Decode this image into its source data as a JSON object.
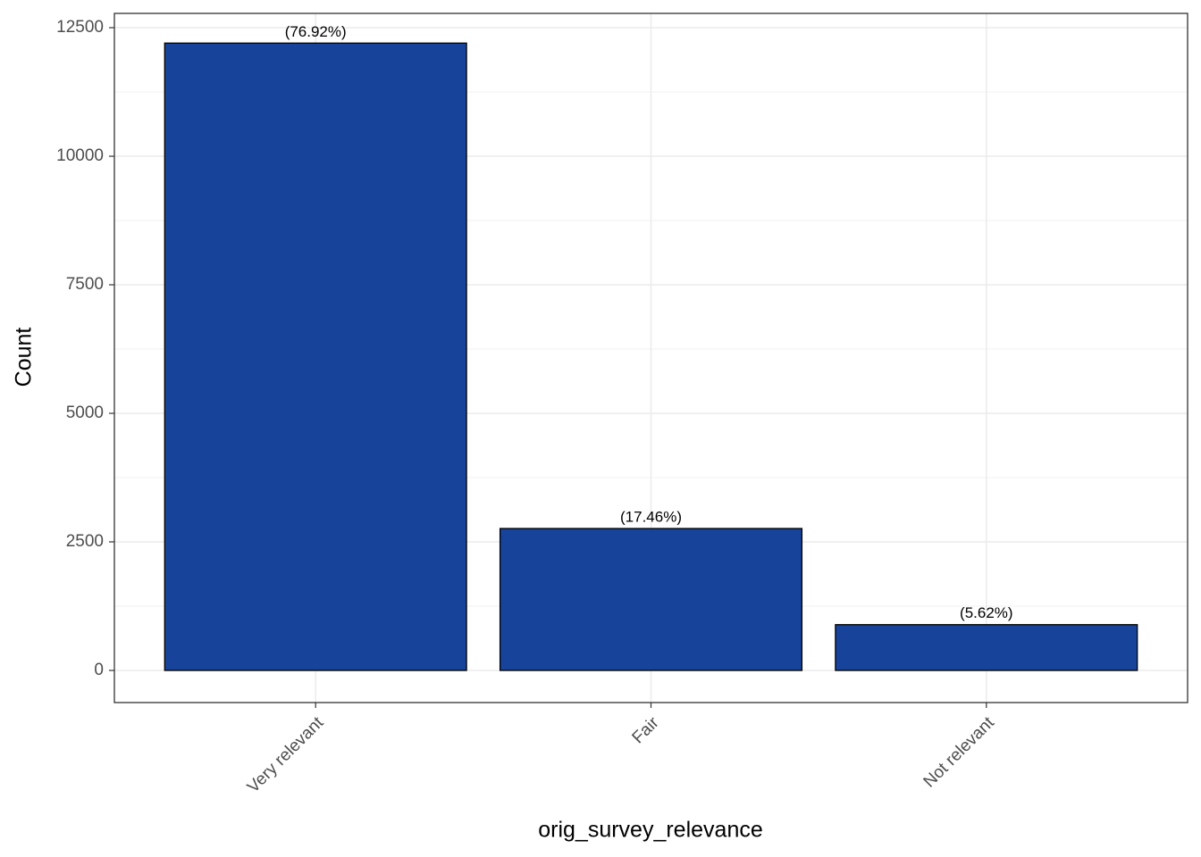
{
  "chart_data": {
    "type": "bar",
    "x_label": "orig_survey_relevance",
    "y_label": "Count",
    "categories": [
      "Very relevant",
      "Fair",
      "Not relevant"
    ],
    "values": [
      12200,
      2760,
      890
    ],
    "labels": [
      "(76.92%)",
      "(17.46%)",
      "(5.62%)"
    ],
    "color": "#17439b",
    "ylim": [
      -625,
      12778
    ],
    "yticks": [
      0,
      2500,
      5000,
      7500,
      10000,
      12500
    ],
    "grid": true
  }
}
